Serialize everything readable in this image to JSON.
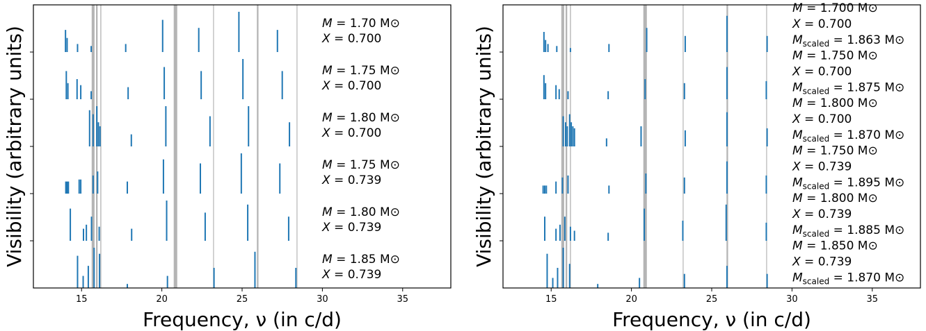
{
  "chart_data": [
    {
      "type": "bar",
      "ylabel": "Visibility (arbitrary units)",
      "xlabel": "Frequency, ν (in c/d)",
      "xlim": [
        12,
        38
      ],
      "xticks": [
        15,
        20,
        25,
        30,
        35
      ],
      "xtick_labels": [
        "15",
        "20",
        "25",
        "30",
        "35"
      ],
      "row_count": 6,
      "shaded_frequencies": [
        {
          "nu": 15.72,
          "width": 0.18
        },
        {
          "nu": 15.95,
          "width": 0.1
        },
        {
          "nu": 16.2,
          "width": 0.06
        },
        {
          "nu": 20.85,
          "width": 0.22
        },
        {
          "nu": 23.22,
          "width": 0.05
        },
        {
          "nu": 25.97,
          "width": 0.1
        },
        {
          "nu": 28.42,
          "width": 0.05
        }
      ],
      "series": [
        {
          "labels": [
            {
              "name": "M",
              "value": "1.85",
              "unit": "M⊙"
            },
            {
              "name": "X",
              "value": "0.739"
            }
          ],
          "modes": [
            [
              14.75,
              0.8
            ],
            [
              15.1,
              0.3
            ],
            [
              15.42,
              0.55
            ],
            [
              15.78,
              1.0
            ],
            [
              16.12,
              0.85
            ],
            [
              17.85,
              0.1
            ],
            [
              20.35,
              0.3
            ],
            [
              23.25,
              0.5
            ],
            [
              25.8,
              0.9
            ],
            [
              28.35,
              0.5
            ]
          ]
        },
        {
          "labels": [
            {
              "name": "M",
              "value": "1.80",
              "unit": "M⊙"
            },
            {
              "name": "X",
              "value": "0.739"
            }
          ],
          "modes": [
            [
              14.3,
              0.8
            ],
            [
              15.12,
              0.3
            ],
            [
              15.3,
              0.4
            ],
            [
              15.62,
              0.6
            ],
            [
              16.1,
              0.35
            ],
            [
              18.12,
              0.3
            ],
            [
              20.3,
              1.0
            ],
            [
              22.7,
              0.7
            ],
            [
              25.35,
              0.9
            ],
            [
              27.9,
              0.6
            ]
          ]
        },
        {
          "labels": [
            {
              "name": "M",
              "value": "1.75",
              "unit": "M⊙"
            },
            {
              "name": "X",
              "value": "0.739"
            }
          ],
          "modes": [
            [
              14.02,
              0.3
            ],
            [
              14.1,
              0.3
            ],
            [
              14.18,
              0.3
            ],
            [
              14.85,
              0.35
            ],
            [
              14.95,
              0.35
            ],
            [
              15.72,
              0.45
            ],
            [
              16.0,
              0.55
            ],
            [
              17.85,
              0.3
            ],
            [
              20.1,
              0.85
            ],
            [
              22.4,
              0.75
            ],
            [
              24.95,
              1.0
            ],
            [
              27.35,
              0.75
            ]
          ]
        },
        {
          "labels": [
            {
              "name": "M",
              "value": "1.80",
              "unit": "M⊙"
            },
            {
              "name": "X",
              "value": "0.700"
            }
          ],
          "modes": [
            [
              15.5,
              0.9
            ],
            [
              15.72,
              0.8
            ],
            [
              15.95,
              1.0
            ],
            [
              16.05,
              0.6
            ],
            [
              16.15,
              0.5
            ],
            [
              18.1,
              0.3
            ],
            [
              20.25,
              1.0
            ],
            [
              23.0,
              0.75
            ],
            [
              25.4,
              1.0
            ],
            [
              27.95,
              0.6
            ]
          ]
        },
        {
          "labels": [
            {
              "name": "M",
              "value": "1.75",
              "unit": "M⊙"
            },
            {
              "name": "X",
              "value": "0.700"
            }
          ],
          "modes": [
            [
              14.05,
              0.7
            ],
            [
              14.15,
              0.4
            ],
            [
              14.72,
              0.5
            ],
            [
              14.95,
              0.35
            ],
            [
              15.6,
              0.2
            ],
            [
              17.9,
              0.3
            ],
            [
              20.15,
              0.8
            ],
            [
              22.45,
              0.7
            ],
            [
              25.05,
              1.0
            ],
            [
              27.5,
              0.7
            ]
          ]
        },
        {
          "labels": [
            {
              "name": "M",
              "value": "1.70",
              "unit": "M⊙"
            },
            {
              "name": "X",
              "value": "0.700"
            }
          ],
          "modes": [
            [
              14.0,
              0.55
            ],
            [
              14.1,
              0.35
            ],
            [
              14.75,
              0.2
            ],
            [
              15.6,
              0.15
            ],
            [
              17.75,
              0.2
            ],
            [
              20.05,
              0.8
            ],
            [
              22.3,
              0.6
            ],
            [
              24.8,
              1.0
            ],
            [
              27.2,
              0.55
            ]
          ]
        }
      ]
    },
    {
      "type": "bar",
      "ylabel": "Visibility (arbitrary units)",
      "xlabel": "Frequency, ν (in c/d)",
      "xlim": [
        12,
        38
      ],
      "xticks": [
        15,
        20,
        25,
        30,
        35
      ],
      "xtick_labels": [
        "15",
        "20",
        "25",
        "30",
        "35"
      ],
      "row_count": 6,
      "shaded_frequencies": [
        {
          "nu": 15.72,
          "width": 0.18
        },
        {
          "nu": 15.95,
          "width": 0.1
        },
        {
          "nu": 16.2,
          "width": 0.06
        },
        {
          "nu": 20.85,
          "width": 0.22
        },
        {
          "nu": 23.22,
          "width": 0.05
        },
        {
          "nu": 25.97,
          "width": 0.1
        },
        {
          "nu": 28.42,
          "width": 0.05
        }
      ],
      "series": [
        {
          "labels": [
            {
              "name": "M",
              "value": "1.850",
              "unit": "M⊙"
            },
            {
              "name": "X",
              "value": "0.739"
            },
            {
              "name": "M",
              "sub": "scaled",
              "value": "1.870",
              "unit": "M⊙"
            }
          ],
          "modes": [
            [
              14.75,
              0.85
            ],
            [
              15.1,
              0.25
            ],
            [
              15.4,
              0.5
            ],
            [
              15.75,
              1.0
            ],
            [
              16.15,
              0.6
            ],
            [
              17.9,
              0.1
            ],
            [
              20.5,
              0.25
            ],
            [
              23.3,
              0.35
            ],
            [
              25.95,
              0.55
            ],
            [
              28.45,
              0.35
            ]
          ]
        },
        {
          "labels": [
            {
              "name": "M",
              "value": "1.800",
              "unit": "M⊙"
            },
            {
              "name": "X",
              "value": "0.739"
            },
            {
              "name": "M",
              "sub": "scaled",
              "value": "1.885",
              "unit": "M⊙"
            }
          ],
          "modes": [
            [
              14.6,
              0.6
            ],
            [
              15.3,
              0.3
            ],
            [
              15.55,
              0.4
            ],
            [
              15.85,
              0.6
            ],
            [
              16.2,
              0.35
            ],
            [
              16.45,
              0.25
            ],
            [
              18.55,
              0.2
            ],
            [
              20.8,
              0.8
            ],
            [
              23.2,
              0.5
            ],
            [
              25.9,
              0.9
            ],
            [
              28.4,
              0.45
            ]
          ]
        },
        {
          "labels": [
            {
              "name": "M",
              "value": "1.750",
              "unit": "M⊙"
            },
            {
              "name": "X",
              "value": "0.739"
            },
            {
              "name": "M",
              "sub": "scaled",
              "value": "1.895",
              "unit": "M⊙"
            }
          ],
          "modes": [
            [
              14.5,
              0.2
            ],
            [
              14.6,
              0.2
            ],
            [
              14.7,
              0.2
            ],
            [
              15.3,
              0.3
            ],
            [
              15.7,
              0.4
            ],
            [
              16.05,
              0.45
            ],
            [
              18.6,
              0.2
            ],
            [
              20.9,
              0.5
            ],
            [
              23.3,
              0.4
            ],
            [
              25.95,
              0.8
            ],
            [
              28.4,
              0.45
            ]
          ]
        },
        {
          "labels": [
            {
              "name": "M",
              "value": "1.800",
              "unit": "M⊙"
            },
            {
              "name": "X",
              "value": "0.700"
            },
            {
              "name": "M",
              "sub": "scaled",
              "value": "1.870",
              "unit": "M⊙"
            }
          ],
          "modes": [
            [
              15.75,
              0.75
            ],
            [
              15.9,
              0.6
            ],
            [
              16.0,
              0.5
            ],
            [
              16.15,
              0.8
            ],
            [
              16.25,
              0.6
            ],
            [
              16.35,
              0.5
            ],
            [
              16.45,
              0.45
            ],
            [
              18.45,
              0.2
            ],
            [
              20.6,
              0.5
            ],
            [
              23.35,
              0.4
            ],
            [
              25.95,
              0.85
            ],
            [
              28.45,
              0.45
            ]
          ]
        },
        {
          "labels": [
            {
              "name": "M",
              "value": "1.750",
              "unit": "M⊙"
            },
            {
              "name": "X",
              "value": "0.700"
            },
            {
              "name": "M",
              "sub": "scaled",
              "value": "1.875",
              "unit": "M⊙"
            }
          ],
          "modes": [
            [
              14.55,
              0.6
            ],
            [
              14.65,
              0.4
            ],
            [
              15.3,
              0.35
            ],
            [
              15.5,
              0.25
            ],
            [
              16.05,
              0.2
            ],
            [
              18.55,
              0.2
            ],
            [
              20.85,
              0.5
            ],
            [
              23.3,
              0.4
            ],
            [
              25.95,
              0.8
            ],
            [
              28.4,
              0.45
            ]
          ]
        },
        {
          "labels": [
            {
              "name": "M",
              "value": "1.700",
              "unit": "M⊙"
            },
            {
              "name": "X",
              "value": "0.700"
            },
            {
              "name": "M",
              "sub": "scaled",
              "value": "1.863",
              "unit": "M⊙"
            }
          ],
          "modes": [
            [
              14.55,
              0.5
            ],
            [
              14.65,
              0.3
            ],
            [
              14.8,
              0.2
            ],
            [
              15.35,
              0.15
            ],
            [
              16.2,
              0.1
            ],
            [
              18.6,
              0.2
            ],
            [
              20.95,
              0.6
            ],
            [
              23.35,
              0.4
            ],
            [
              25.95,
              0.9
            ],
            [
              28.45,
              0.4
            ]
          ]
        }
      ]
    }
  ]
}
